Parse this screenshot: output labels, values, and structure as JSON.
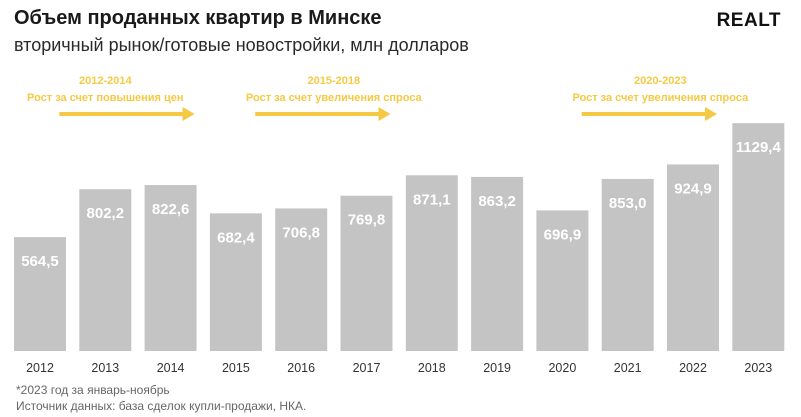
{
  "header": {
    "title": "Объем проданных квартир в Минске",
    "subtitle": "вторичный рынок/готовые новостройки, млн долларов",
    "logo": "REALT"
  },
  "annotations": [
    {
      "period": "2012-2014",
      "text": "Рост за счет повышения цен"
    },
    {
      "period": "2015-2018",
      "text": "Рост за счет увеличения спроса"
    },
    {
      "period": "2020-2023",
      "text": "Рост за счет увеличения спроса"
    }
  ],
  "chart_data": {
    "type": "bar",
    "title": "Объем проданных квартир в Минске",
    "subtitle": "вторичный рынок/готовые новостройки, млн долларов",
    "categories": [
      "2012",
      "2013",
      "2014",
      "2015",
      "2016",
      "2017",
      "2018",
      "2019",
      "2020",
      "2021",
      "2022",
      "2023"
    ],
    "values": [
      564.5,
      802.2,
      822.6,
      682.4,
      706.8,
      769.8,
      871.1,
      863.2,
      696.9,
      853.0,
      924.9,
      1129.4
    ],
    "value_labels": [
      "564,5",
      "802,2",
      "822,6",
      "682,4",
      "706,8",
      "769,8",
      "871,1",
      "863,2",
      "696,9",
      "853,0",
      "924,9",
      "1129,4"
    ],
    "xlabel": "",
    "ylabel": "",
    "ylim": [
      0,
      1160
    ],
    "grid": false,
    "bar_color": "#c4c4c4",
    "accent_color": "#f6c944"
  },
  "footnotes": {
    "note": "*2023 год за январь-ноябрь",
    "source": "Источник данных: база сделок купли-продажи, НКА."
  }
}
